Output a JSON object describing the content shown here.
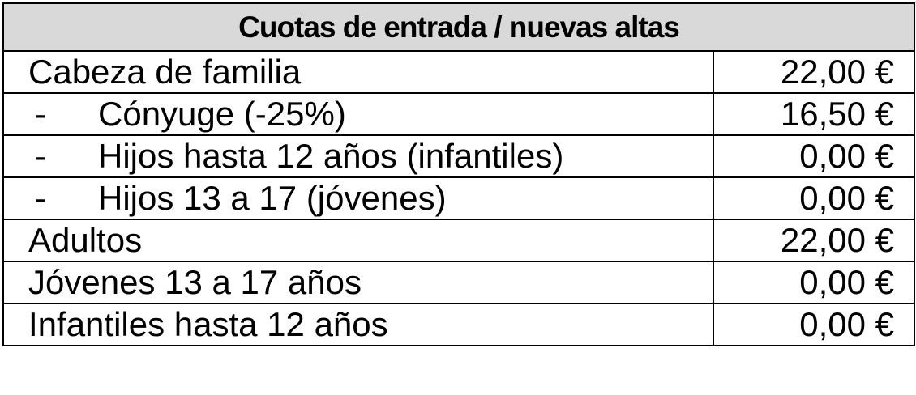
{
  "table": {
    "title": "Cuotas de entrada / nuevas altas",
    "rows": [
      {
        "label": "Cabeza de familia",
        "value": "22,00 €"
      },
      {
        "prefix": "-",
        "label": "Cónyuge (-25%)",
        "value": "16,50 €"
      },
      {
        "prefix": "-",
        "label": "Hijos hasta 12 años (infantiles)",
        "value": "0,00 €"
      },
      {
        "prefix": "-",
        "label": "Hijos 13 a 17 (jóvenes)",
        "value": "0,00 €"
      },
      {
        "label": "Adultos",
        "value": "22,00 €"
      },
      {
        "label": "Jóvenes 13 a 17 años",
        "value": "0,00 €"
      },
      {
        "label": "Infantiles hasta 12 años",
        "value": "0,00 €"
      }
    ]
  }
}
